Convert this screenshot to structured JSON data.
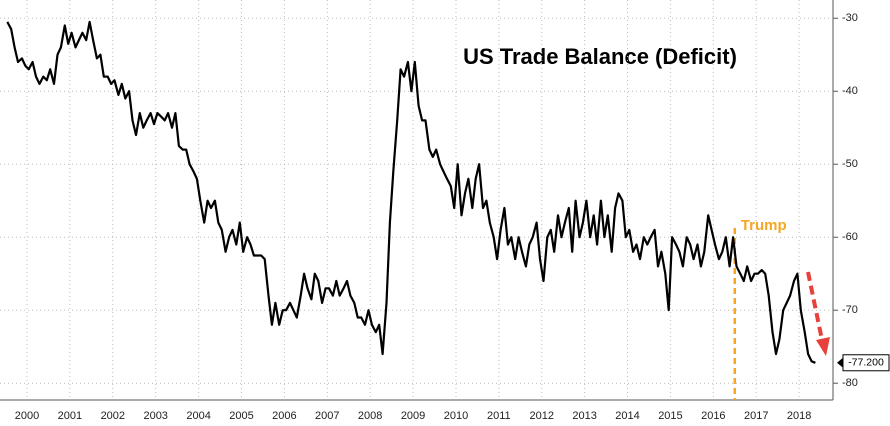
{
  "chart_data": {
    "type": "line",
    "title": "US Trade Balance (Deficit)",
    "color": "#000000",
    "xlim": [
      1999.87,
      2019.29
    ],
    "ylim": [
      -82.3,
      -27.5
    ],
    "grid": true,
    "xticks": [
      {
        "value": 2000.5,
        "label": "2000"
      },
      {
        "value": 2001.5,
        "label": "2001"
      },
      {
        "value": 2002.5,
        "label": "2002"
      },
      {
        "value": 2003.5,
        "label": "2003"
      },
      {
        "value": 2004.5,
        "label": "2004"
      },
      {
        "value": 2005.5,
        "label": "2005"
      },
      {
        "value": 2006.5,
        "label": "2006"
      },
      {
        "value": 2007.5,
        "label": "2007"
      },
      {
        "value": 2008.5,
        "label": "2008"
      },
      {
        "value": 2009.5,
        "label": "2009"
      },
      {
        "value": 2010.5,
        "label": "2010"
      },
      {
        "value": 2011.5,
        "label": "2011"
      },
      {
        "value": 2012.5,
        "label": "2012"
      },
      {
        "value": 2013.5,
        "label": "2013"
      },
      {
        "value": 2014.5,
        "label": "2014"
      },
      {
        "value": 2015.5,
        "label": "2015"
      },
      {
        "value": 2016.5,
        "label": "2016"
      },
      {
        "value": 2017.5,
        "label": "2017"
      },
      {
        "value": 2018.5,
        "label": "2018"
      }
    ],
    "yticks": [
      -30,
      -40,
      -50,
      -60,
      -70,
      -80
    ],
    "annotation": {
      "text": "Trump",
      "x": 2017.0,
      "color": "#f5a623"
    },
    "last_value_label": "-77.200",
    "x": [
      2000.04,
      2000.13,
      2000.21,
      2000.29,
      2000.38,
      2000.46,
      2000.54,
      2000.63,
      2000.71,
      2000.79,
      2000.88,
      2000.96,
      2001.04,
      2001.13,
      2001.21,
      2001.29,
      2001.38,
      2001.46,
      2001.54,
      2001.63,
      2001.71,
      2001.79,
      2001.88,
      2001.96,
      2002.04,
      2002.13,
      2002.21,
      2002.29,
      2002.38,
      2002.46,
      2002.54,
      2002.63,
      2002.71,
      2002.79,
      2002.88,
      2002.96,
      2003.04,
      2003.13,
      2003.21,
      2003.29,
      2003.38,
      2003.46,
      2003.54,
      2003.63,
      2003.71,
      2003.79,
      2003.88,
      2003.96,
      2004.04,
      2004.13,
      2004.21,
      2004.29,
      2004.38,
      2004.46,
      2004.54,
      2004.63,
      2004.71,
      2004.79,
      2004.88,
      2004.96,
      2005.04,
      2005.13,
      2005.21,
      2005.29,
      2005.38,
      2005.46,
      2005.54,
      2005.63,
      2005.71,
      2005.79,
      2005.88,
      2005.96,
      2006.04,
      2006.13,
      2006.21,
      2006.29,
      2006.38,
      2006.46,
      2006.54,
      2006.63,
      2006.71,
      2006.79,
      2006.88,
      2006.96,
      2007.04,
      2007.13,
      2007.21,
      2007.29,
      2007.38,
      2007.46,
      2007.54,
      2007.63,
      2007.71,
      2007.79,
      2007.88,
      2007.96,
      2008.04,
      2008.13,
      2008.21,
      2008.29,
      2008.38,
      2008.46,
      2008.54,
      2008.63,
      2008.71,
      2008.79,
      2008.88,
      2008.96,
      2009.04,
      2009.13,
      2009.21,
      2009.29,
      2009.38,
      2009.46,
      2009.54,
      2009.63,
      2009.71,
      2009.79,
      2009.88,
      2009.96,
      2010.04,
      2010.13,
      2010.21,
      2010.29,
      2010.38,
      2010.46,
      2010.54,
      2010.63,
      2010.71,
      2010.79,
      2010.88,
      2010.96,
      2011.04,
      2011.13,
      2011.21,
      2011.29,
      2011.38,
      2011.46,
      2011.54,
      2011.63,
      2011.71,
      2011.79,
      2011.88,
      2011.96,
      2012.04,
      2012.13,
      2012.21,
      2012.29,
      2012.38,
      2012.46,
      2012.54,
      2012.63,
      2012.71,
      2012.79,
      2012.88,
      2012.96,
      2013.04,
      2013.13,
      2013.21,
      2013.29,
      2013.38,
      2013.46,
      2013.54,
      2013.63,
      2013.71,
      2013.79,
      2013.88,
      2013.96,
      2014.04,
      2014.13,
      2014.21,
      2014.29,
      2014.38,
      2014.46,
      2014.54,
      2014.63,
      2014.71,
      2014.79,
      2014.88,
      2014.96,
      2015.04,
      2015.13,
      2015.21,
      2015.29,
      2015.38,
      2015.46,
      2015.54,
      2015.63,
      2015.71,
      2015.79,
      2015.88,
      2015.96,
      2016.04,
      2016.13,
      2016.21,
      2016.29,
      2016.38,
      2016.46,
      2016.54,
      2016.63,
      2016.71,
      2016.79,
      2016.88,
      2016.96,
      2017.04,
      2017.13,
      2017.21,
      2017.29,
      2017.38,
      2017.46,
      2017.54,
      2017.63,
      2017.71,
      2017.79,
      2017.88,
      2017.96,
      2018.04,
      2018.13,
      2018.21,
      2018.29,
      2018.38,
      2018.46,
      2018.54,
      2018.63,
      2018.71,
      2018.79,
      2018.88
    ],
    "values": [
      -30.5,
      -31.5,
      -34,
      -36,
      -35.5,
      -36.5,
      -37,
      -36,
      -38,
      -39,
      -38,
      -38.5,
      -37,
      -39,
      -35,
      -34,
      -31,
      -33.5,
      -32,
      -34,
      -33,
      -32,
      -33,
      -30.5,
      -33,
      -35.5,
      -35,
      -38,
      -38,
      -39,
      -38.5,
      -40.5,
      -39,
      -41,
      -40,
      -44,
      -46,
      -43,
      -45,
      -44,
      -43,
      -44.5,
      -43,
      -43.5,
      -44,
      -43,
      -45,
      -43,
      -47.5,
      -48,
      -48,
      -50,
      -51,
      -52,
      -55,
      -58,
      -55,
      -56,
      -55,
      -58,
      -59,
      -62,
      -60,
      -59,
      -61,
      -58,
      -62,
      -60,
      -61,
      -62.5,
      -62.5,
      -62.5,
      -63,
      -68,
      -72,
      -69,
      -72,
      -70,
      -70,
      -69,
      -70,
      -71,
      -68,
      -65,
      -67,
      -68.5,
      -65,
      -66,
      -69,
      -67,
      -67,
      -68,
      -66,
      -68,
      -67,
      -66,
      -68,
      -69,
      -71,
      -71,
      -72,
      -70,
      -72,
      -73,
      -72,
      -76,
      -69,
      -58,
      -51,
      -44,
      -37,
      -38,
      -36,
      -40,
      -36,
      -42,
      -44,
      -44,
      -48,
      -49,
      -48,
      -50,
      -51,
      -52,
      -53,
      -56,
      -50,
      -57,
      -54,
      -52,
      -56,
      -52,
      -50,
      -56,
      -55,
      -58,
      -60,
      -63,
      -59,
      -56,
      -61,
      -60,
      -63,
      -60,
      -62,
      -64,
      -61,
      -60,
      -58,
      -63,
      -66,
      -60,
      -59,
      -62,
      -57,
      -60,
      -58,
      -56,
      -62,
      -55,
      -60,
      -58,
      -55,
      -60,
      -57,
      -61,
      -55,
      -60,
      -57,
      -62,
      -56,
      -54,
      -55,
      -60,
      -59,
      -62,
      -61,
      -63,
      -60,
      -61,
      -60,
      -59,
      -64,
      -62,
      -65,
      -70,
      -60,
      -61,
      -62,
      -64,
      -60,
      -61,
      -63,
      -61,
      -64,
      -62,
      -57,
      -59,
      -61,
      -63,
      -62,
      -60,
      -64,
      -60,
      -64,
      -65,
      -66,
      -64,
      -66,
      -65,
      -65,
      -64.5,
      -65,
      -68,
      -73,
      -76,
      -74,
      -70,
      -69,
      -68,
      -66,
      -65,
      -70,
      -73,
      -76,
      -77,
      -77.2
    ]
  }
}
